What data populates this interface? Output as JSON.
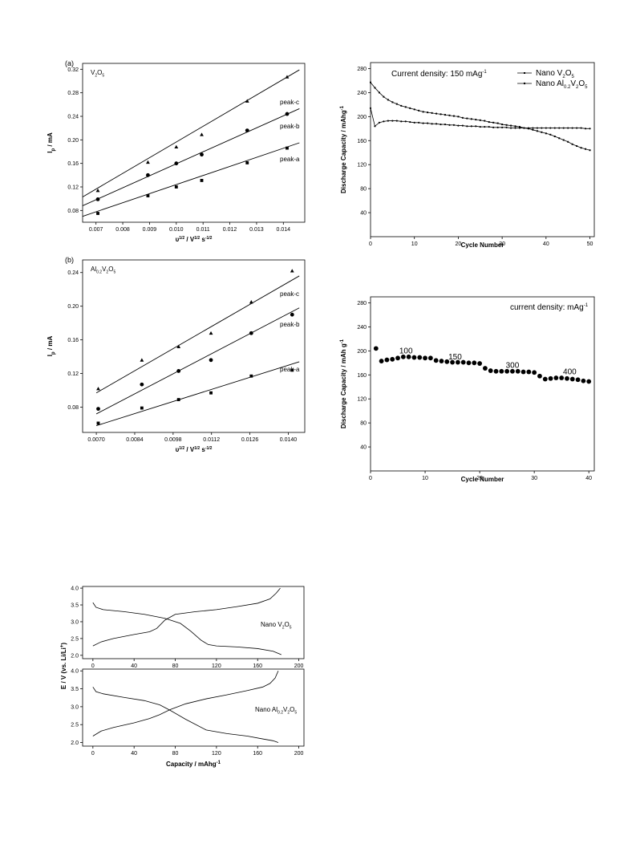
{
  "chart_data": [
    {
      "id": "a",
      "type": "scatter",
      "panel_label": "(a)",
      "annotation": {
        "base": "V",
        "sub1": "2",
        "mid": "O",
        "sub2": "5"
      },
      "xlabel": "υ^1/2 / V^1/2 s^-1/2",
      "ylabel": "I_p / mA",
      "xlim": [
        0.0065,
        0.0148
      ],
      "ylim": [
        0.06,
        0.33
      ],
      "x_ticks": [
        "0.007",
        "0.008",
        "0.009",
        "0.010",
        "0.011",
        "0.012",
        "0.013",
        "0.014"
      ],
      "y_ticks": [
        "0.08",
        "0.12",
        "0.16",
        "0.20",
        "0.24",
        "0.28",
        "0.32"
      ],
      "series": [
        {
          "name": "peak-c",
          "marker": "triangle",
          "x": [
            0.00707,
            0.00894,
            0.01,
            0.01095,
            0.01265,
            0.01414
          ],
          "y": [
            0.114,
            0.162,
            0.188,
            0.209,
            0.266,
            0.307
          ],
          "fit": [
            [
              0.0065,
              0.103
            ],
            [
              0.0146,
              0.319
            ]
          ]
        },
        {
          "name": "peak-b",
          "marker": "circle",
          "x": [
            0.00707,
            0.00894,
            0.01,
            0.01095,
            0.01265,
            0.01414
          ],
          "y": [
            0.099,
            0.14,
            0.16,
            0.175,
            0.216,
            0.244
          ],
          "fit": [
            [
              0.0065,
              0.088
            ],
            [
              0.0146,
              0.253
            ]
          ]
        },
        {
          "name": "peak-a",
          "marker": "square",
          "x": [
            0.00707,
            0.00894,
            0.01,
            0.01095,
            0.01265,
            0.01414
          ],
          "y": [
            0.075,
            0.105,
            0.12,
            0.131,
            0.161,
            0.186
          ],
          "fit": [
            [
              0.0065,
              0.07
            ],
            [
              0.0146,
              0.195
            ]
          ]
        }
      ]
    },
    {
      "id": "b",
      "type": "scatter",
      "panel_label": "(b)",
      "annotation": {
        "base": "Al",
        "sub1": "0.2",
        "mid": "V",
        "sub2": "2",
        "tail": "O",
        "sub3": "5"
      },
      "xlabel": "υ^1/2 / V^1/2 s^-1/2",
      "ylabel": "I_p / mA",
      "xlim": [
        0.0065,
        0.0146
      ],
      "ylim": [
        0.05,
        0.255
      ],
      "x_ticks": [
        "0.0070",
        "0.0084",
        "0.0098",
        "0.0112",
        "0.0126",
        "0.0140"
      ],
      "y_ticks": [
        "0.08",
        "0.12",
        "0.16",
        "0.20",
        "0.24"
      ],
      "series": [
        {
          "name": "peak-c",
          "marker": "triangle",
          "x": [
            0.00707,
            0.00866,
            0.01,
            0.01118,
            0.01265,
            0.01414
          ],
          "y": [
            0.102,
            0.136,
            0.152,
            0.168,
            0.205,
            0.242
          ],
          "fit": [
            [
              0.007,
              0.097
            ],
            [
              0.0144,
              0.236
            ]
          ]
        },
        {
          "name": "peak-b",
          "marker": "circle",
          "x": [
            0.00707,
            0.00866,
            0.01,
            0.01118,
            0.01265,
            0.01414
          ],
          "y": [
            0.078,
            0.107,
            0.123,
            0.136,
            0.168,
            0.19
          ],
          "fit": [
            [
              0.007,
              0.072
            ],
            [
              0.0144,
              0.198
            ]
          ]
        },
        {
          "name": "peak-a",
          "marker": "square",
          "x": [
            0.00707,
            0.00866,
            0.01,
            0.01118,
            0.01265,
            0.01414
          ],
          "y": [
            0.061,
            0.079,
            0.089,
            0.097,
            0.117,
            0.124
          ],
          "fit": [
            [
              0.007,
              0.058
            ],
            [
              0.0144,
              0.134
            ]
          ]
        }
      ]
    },
    {
      "id": "c",
      "type": "line",
      "annotation": {
        "text": "Current density: 150 mAg",
        "sup": "-1"
      },
      "xlabel": "Cycle Number",
      "ylabel": "Discharge Capacity / mAhg^-1",
      "xlim": [
        0,
        51
      ],
      "ylim": [
        0,
        290
      ],
      "x_ticks": [
        "0",
        "10",
        "20",
        "30",
        "40",
        "50"
      ],
      "y_ticks": [
        "40",
        "80",
        "120",
        "160",
        "200",
        "240",
        "280"
      ],
      "legend": [
        {
          "text": "Nano V",
          "sub1": "2",
          "mid": "O",
          "sub2": "5"
        },
        {
          "text": "Nano Al",
          "sub1": "0.2",
          "mid": "V",
          "sub2": "2",
          "tail": "O",
          "sub3": "5"
        }
      ],
      "series": [
        {
          "name": "Nano V2O5",
          "y": [
            257,
            248,
            240,
            233,
            228,
            224,
            221,
            218,
            216,
            214,
            212,
            210,
            208,
            207,
            206,
            205,
            204,
            203,
            202,
            201,
            200,
            198,
            197,
            196,
            195,
            194,
            193,
            191,
            190,
            189,
            187,
            186,
            185,
            184,
            183,
            181,
            180,
            178,
            176,
            174,
            172,
            170,
            167,
            164,
            161,
            158,
            154,
            151,
            148,
            146,
            144
          ]
        },
        {
          "name": "Nano Al0.2V2O5",
          "y": [
            214,
            184,
            190,
            192,
            193,
            193,
            193,
            192,
            192,
            191,
            190,
            190,
            189,
            189,
            188,
            188,
            187,
            187,
            186,
            186,
            185,
            185,
            184,
            184,
            184,
            183,
            183,
            183,
            182,
            182,
            182,
            182,
            181,
            181,
            181,
            181,
            181,
            181,
            181,
            181,
            181,
            181,
            181,
            181,
            181,
            181,
            181,
            181,
            181,
            180,
            180
          ]
        }
      ]
    },
    {
      "id": "d",
      "type": "scatter",
      "annotation": {
        "text": "current density: mAg",
        "sup": "-1"
      },
      "xlabel": "Cycle Number",
      "ylabel": "Discharge Capacity / mAh g^-1",
      "xlim": [
        0,
        41
      ],
      "ylim": [
        0,
        290
      ],
      "x_ticks": [
        "0",
        "10",
        "20",
        "30",
        "40"
      ],
      "y_ticks": [
        "40",
        "80",
        "120",
        "160",
        "200",
        "240",
        "280"
      ],
      "rate_labels": [
        {
          "text": "100",
          "x": 6.5,
          "y": 196
        },
        {
          "text": "150",
          "x": 15.5,
          "y": 186
        },
        {
          "text": "300",
          "x": 26,
          "y": 172
        },
        {
          "text": "400",
          "x": 36.5,
          "y": 161
        }
      ],
      "series": [
        {
          "name": "capacity",
          "x": [
            1,
            2,
            3,
            4,
            5,
            6,
            7,
            8,
            9,
            10,
            11,
            12,
            13,
            14,
            15,
            16,
            17,
            18,
            19,
            20,
            21,
            22,
            23,
            24,
            25,
            26,
            27,
            28,
            29,
            30,
            31,
            32,
            33,
            34,
            35,
            36,
            37,
            38,
            39,
            40
          ],
          "y": [
            204,
            183,
            185,
            186,
            188,
            190,
            190,
            189,
            189,
            188,
            188,
            184,
            183,
            182,
            181,
            181,
            181,
            180,
            180,
            179,
            171,
            167,
            166,
            166,
            166,
            166,
            166,
            165,
            165,
            164,
            158,
            153,
            154,
            155,
            155,
            154,
            153,
            152,
            150,
            149
          ]
        }
      ]
    },
    {
      "id": "e",
      "type": "line",
      "xlabel": "Capacity / mAhg^-1",
      "ylabel": "E / V (vs. Li/Li^+)",
      "xlim": [
        -10,
        205
      ],
      "ylim_each": [
        1.9,
        4.05
      ],
      "x_ticks": [
        "0",
        "40",
        "80",
        "120",
        "160",
        "200"
      ],
      "y_ticks": [
        "2.0",
        "2.5",
        "3.0",
        "3.5",
        "4.0"
      ],
      "subplots": [
        {
          "label": {
            "text": "Nano V",
            "sub1": "2",
            "mid": "O",
            "sub2": "5"
          },
          "series": [
            {
              "name": "charge",
              "x": [
                0,
                8,
                20,
                40,
                55,
                62,
                70,
                80,
                100,
                120,
                140,
                160,
                172,
                178,
                182
              ],
              "y": [
                2.28,
                2.4,
                2.5,
                2.62,
                2.7,
                2.8,
                3.05,
                3.22,
                3.3,
                3.36,
                3.45,
                3.55,
                3.68,
                3.85,
                4.0
              ]
            },
            {
              "name": "discharge",
              "x": [
                0,
                3,
                10,
                30,
                50,
                70,
                85,
                95,
                105,
                112,
                120,
                140,
                160,
                175,
                183
              ],
              "y": [
                3.57,
                3.43,
                3.36,
                3.3,
                3.22,
                3.1,
                2.95,
                2.72,
                2.45,
                2.32,
                2.28,
                2.25,
                2.2,
                2.12,
                2.02
              ]
            }
          ]
        },
        {
          "label": {
            "text": "Nano Al",
            "sub1": "0.2",
            "mid": "V",
            "sub2": "2",
            "tail": "O",
            "sub3": "5"
          },
          "series": [
            {
              "name": "charge",
              "x": [
                0,
                8,
                20,
                40,
                55,
                65,
                75,
                90,
                110,
                130,
                150,
                165,
                172,
                177,
                180
              ],
              "y": [
                2.18,
                2.32,
                2.42,
                2.55,
                2.67,
                2.78,
                2.92,
                3.08,
                3.22,
                3.33,
                3.45,
                3.55,
                3.65,
                3.8,
                4.0
              ]
            },
            {
              "name": "discharge",
              "x": [
                0,
                3,
                10,
                30,
                50,
                65,
                75,
                90,
                110,
                130,
                150,
                165,
                175,
                180
              ],
              "y": [
                3.55,
                3.42,
                3.36,
                3.26,
                3.17,
                3.05,
                2.9,
                2.65,
                2.35,
                2.25,
                2.18,
                2.1,
                2.05,
                2.0
              ]
            }
          ]
        }
      ]
    }
  ]
}
